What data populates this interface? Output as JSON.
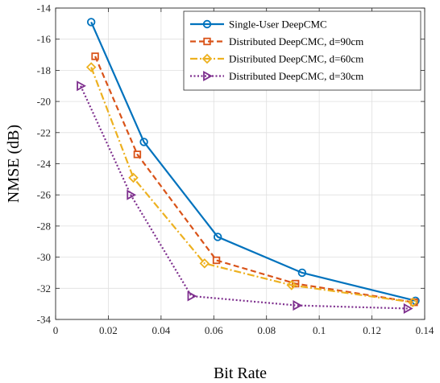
{
  "chart_data": {
    "type": "line",
    "title": "",
    "xlabel": "Bit Rate",
    "ylabel": "NMSE (dB)",
    "xlim": [
      0,
      0.14
    ],
    "ylim": [
      -34,
      -14
    ],
    "x_ticks": [
      0,
      0.02,
      0.04,
      0.06,
      0.08,
      0.1,
      0.12,
      0.14
    ],
    "x_tick_labels": [
      "0",
      "0.02",
      "0.04",
      "0.06",
      "0.08",
      "0.1",
      "0.12",
      "0.14"
    ],
    "y_ticks": [
      -34,
      -32,
      -30,
      -28,
      -26,
      -24,
      -22,
      -20,
      -18,
      -16,
      -14
    ],
    "y_tick_labels": [
      "-34",
      "-32",
      "-30",
      "-28",
      "-26",
      "-24",
      "-22",
      "-20",
      "-18",
      "-16",
      "-14"
    ],
    "grid": true,
    "legend_position": "top-right",
    "series": [
      {
        "name": "Single-User DeepCMC",
        "color": "#0072BD",
        "line_style": "solid",
        "marker": "circle",
        "x": [
          0.0135,
          0.0335,
          0.0615,
          0.0935,
          0.1365
        ],
        "y": [
          -14.9,
          -22.6,
          -28.7,
          -31.0,
          -32.8
        ]
      },
      {
        "name": "Distributed DeepCMC, d=90cm",
        "color": "#D95319",
        "line_style": "dashed",
        "marker": "square",
        "x": [
          0.015,
          0.031,
          0.061,
          0.091,
          0.136
        ],
        "y": [
          -17.1,
          -23.4,
          -30.2,
          -31.7,
          -32.9
        ]
      },
      {
        "name": "Distributed DeepCMC, d=60cm",
        "color": "#EDB120",
        "line_style": "dashdot",
        "marker": "diamond",
        "x": [
          0.0135,
          0.0295,
          0.0565,
          0.0895,
          0.1355
        ],
        "y": [
          -17.8,
          -24.9,
          -30.4,
          -31.8,
          -32.9
        ]
      },
      {
        "name": "Distributed DeepCMC, d=30cm",
        "color": "#7E2F8E",
        "line_style": "dotted",
        "marker": "triangle-right",
        "x": [
          0.0095,
          0.0285,
          0.0515,
          0.0915,
          0.1335
        ],
        "y": [
          -19.0,
          -26.0,
          -32.5,
          -33.1,
          -33.3
        ]
      }
    ]
  }
}
